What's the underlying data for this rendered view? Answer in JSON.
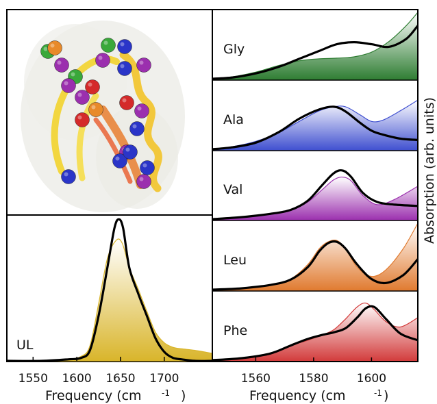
{
  "chart_data": [
    {
      "type": "illustration",
      "description_icon": "protein-structure-icon"
    },
    {
      "type": "area",
      "label": "UL",
      "xlabel": "Frequency (cm",
      "xlabel_sup": "-1",
      "xlim": [
        1520,
        1755
      ],
      "xticks": [
        "1550",
        "1600",
        "1650",
        "1700"
      ],
      "xtick_values": [
        1550,
        1600,
        1650,
        1700
      ],
      "series": [
        {
          "style": "fill",
          "color": "#d9b52b",
          "x": [
            1520,
            1560,
            1590,
            1605,
            1615,
            1625,
            1635,
            1645,
            1652,
            1660,
            1670,
            1680,
            1690,
            1700,
            1710,
            1720,
            1735,
            1755
          ],
          "y": [
            0.0,
            0.0,
            0.01,
            0.03,
            0.1,
            0.38,
            0.68,
            0.8,
            0.78,
            0.62,
            0.48,
            0.33,
            0.19,
            0.12,
            0.09,
            0.08,
            0.07,
            0.05
          ]
        },
        {
          "style": "line",
          "color": "#000000",
          "x": [
            1520,
            1560,
            1590,
            1605,
            1615,
            1625,
            1635,
            1643,
            1648,
            1653,
            1660,
            1670,
            1680,
            1690,
            1700,
            1710,
            1720,
            1735,
            1755
          ],
          "y": [
            0.0,
            0.0,
            0.01,
            0.02,
            0.07,
            0.3,
            0.62,
            0.88,
            0.94,
            0.88,
            0.62,
            0.45,
            0.3,
            0.15,
            0.06,
            0.02,
            0.01,
            0.0,
            0.0
          ]
        }
      ]
    },
    {
      "type": "area",
      "xlabel": "Frequency (cm",
      "xlabel_sup": "-1",
      "ylabel": "Absorption (arb. units)",
      "xlim": [
        1545,
        1616
      ],
      "xticks": [
        "1560",
        "1580",
        "1600"
      ],
      "xtick_values": [
        1560,
        1580,
        1600
      ],
      "panels": [
        {
          "label": "Gly",
          "color": "#2e7d32",
          "x": [
            1545,
            1552,
            1560,
            1568,
            1575,
            1582,
            1588,
            1594,
            1600,
            1606,
            1612,
            1616
          ],
          "thin": [
            0.0,
            0.03,
            0.1,
            0.2,
            0.27,
            0.3,
            0.31,
            0.33,
            0.4,
            0.56,
            0.8,
            1.0
          ],
          "thick": [
            0.0,
            0.02,
            0.08,
            0.18,
            0.3,
            0.42,
            0.52,
            0.55,
            0.52,
            0.48,
            0.6,
            0.8
          ]
        },
        {
          "label": "Ala",
          "color": "#3f4fd0",
          "x": [
            1545,
            1552,
            1560,
            1568,
            1575,
            1582,
            1587,
            1591,
            1596,
            1600,
            1604,
            1610,
            1616
          ],
          "thin": [
            0.0,
            0.04,
            0.12,
            0.25,
            0.42,
            0.58,
            0.64,
            0.64,
            0.52,
            0.42,
            0.44,
            0.58,
            0.74
          ],
          "thick": [
            0.0,
            0.03,
            0.1,
            0.26,
            0.46,
            0.6,
            0.64,
            0.57,
            0.4,
            0.28,
            0.22,
            0.16,
            0.14
          ]
        },
        {
          "label": "Val",
          "color": "#9b2fae",
          "x": [
            1545,
            1555,
            1565,
            1572,
            1578,
            1583,
            1587,
            1590,
            1593,
            1597,
            1602,
            1608,
            1616
          ],
          "thin": [
            0.0,
            0.03,
            0.08,
            0.14,
            0.26,
            0.45,
            0.6,
            0.64,
            0.58,
            0.36,
            0.22,
            0.3,
            0.5
          ],
          "thick": [
            0.0,
            0.03,
            0.08,
            0.14,
            0.28,
            0.52,
            0.7,
            0.74,
            0.64,
            0.4,
            0.26,
            0.22,
            0.2
          ]
        },
        {
          "label": "Leu",
          "color": "#e07a2f",
          "x": [
            1545,
            1555,
            1565,
            1572,
            1578,
            1582,
            1585,
            1588,
            1591,
            1595,
            1600,
            1605,
            1611,
            1616
          ],
          "thin": [
            0.0,
            0.02,
            0.07,
            0.16,
            0.38,
            0.62,
            0.72,
            0.74,
            0.62,
            0.34,
            0.2,
            0.3,
            0.62,
            1.0
          ],
          "thick": [
            0.0,
            0.02,
            0.07,
            0.15,
            0.34,
            0.58,
            0.7,
            0.72,
            0.62,
            0.38,
            0.16,
            0.1,
            0.22,
            0.46
          ]
        },
        {
          "label": "Phe",
          "color": "#d23a3a",
          "x": [
            1545,
            1555,
            1565,
            1572,
            1578,
            1583,
            1587,
            1591,
            1595,
            1598,
            1601,
            1605,
            1610,
            1616
          ],
          "thin": [
            0.0,
            0.03,
            0.1,
            0.22,
            0.3,
            0.38,
            0.46,
            0.62,
            0.8,
            0.86,
            0.76,
            0.58,
            0.5,
            0.64
          ],
          "thick": [
            0.0,
            0.03,
            0.1,
            0.22,
            0.32,
            0.38,
            0.42,
            0.48,
            0.64,
            0.78,
            0.8,
            0.62,
            0.4,
            0.3
          ]
        }
      ]
    }
  ]
}
